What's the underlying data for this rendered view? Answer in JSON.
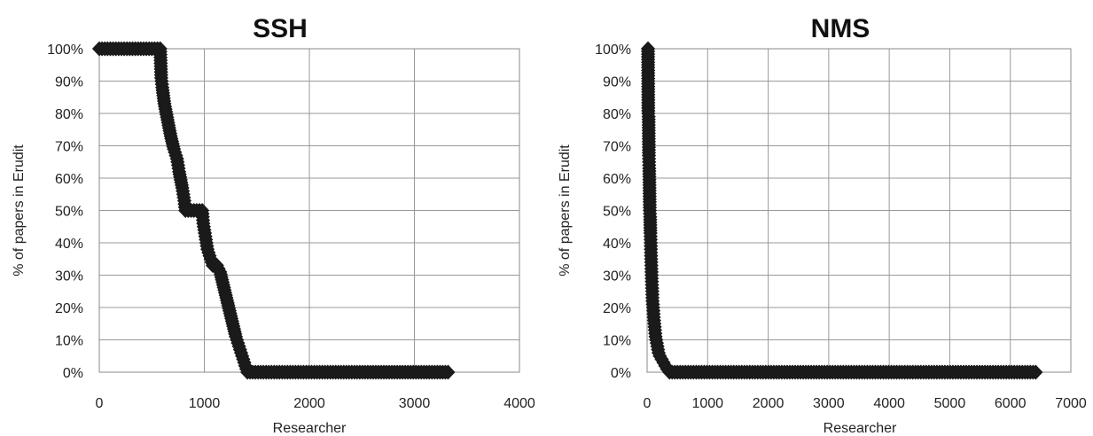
{
  "chart_data": [
    {
      "type": "scatter",
      "title": "SSH",
      "xlabel": "Researcher",
      "ylabel": "% of papers in Erudit",
      "xlim": [
        0,
        4000
      ],
      "ylim": [
        0,
        1
      ],
      "x_ticks": [
        "0",
        "1000",
        "2000",
        "3000",
        "4000"
      ],
      "y_ticks": [
        "0%",
        "10%",
        "20%",
        "30%",
        "40%",
        "50%",
        "60%",
        "70%",
        "80%",
        "90%",
        "100%"
      ],
      "grid": true,
      "legend": "none",
      "marker": "diamond",
      "color": "#1a1a1a",
      "series": [
        {
          "points": [
            [
              0,
              1.0
            ],
            [
              580,
              1.0
            ],
            [
              590,
              0.91
            ],
            [
              600,
              0.88
            ],
            [
              620,
              0.83
            ],
            [
              650,
              0.78
            ],
            [
              680,
              0.73
            ],
            [
              710,
              0.69
            ],
            [
              740,
              0.66
            ],
            [
              760,
              0.62
            ],
            [
              790,
              0.57
            ],
            [
              810,
              0.53
            ],
            [
              820,
              0.5
            ],
            [
              980,
              0.5
            ],
            [
              990,
              0.46
            ],
            [
              1010,
              0.42
            ],
            [
              1030,
              0.38
            ],
            [
              1060,
              0.35
            ],
            [
              1080,
              0.33
            ],
            [
              1120,
              0.33
            ],
            [
              1150,
              0.31
            ],
            [
              1180,
              0.27
            ],
            [
              1210,
              0.23
            ],
            [
              1240,
              0.19
            ],
            [
              1270,
              0.15
            ],
            [
              1300,
              0.11
            ],
            [
              1330,
              0.08
            ],
            [
              1360,
              0.05
            ],
            [
              1390,
              0.02
            ],
            [
              1410,
              0.0
            ],
            [
              3320,
              0.0
            ]
          ]
        }
      ]
    },
    {
      "type": "scatter",
      "title": "NMS",
      "xlabel": "Researcher",
      "ylabel": "% of papers in Erudit",
      "xlim": [
        0,
        7000
      ],
      "ylim": [
        0,
        1
      ],
      "x_ticks": [
        "0",
        "1000",
        "2000",
        "3000",
        "4000",
        "5000",
        "6000",
        "7000"
      ],
      "y_ticks": [
        "0%",
        "10%",
        "20%",
        "30%",
        "40%",
        "50%",
        "60%",
        "70%",
        "80%",
        "90%",
        "100%"
      ],
      "grid": true,
      "legend": "none",
      "marker": "diamond",
      "color": "#1a1a1a",
      "series": [
        {
          "points": [
            [
              15,
              1.0
            ],
            [
              20,
              0.8
            ],
            [
              25,
              0.79
            ],
            [
              30,
              0.67
            ],
            [
              35,
              0.63
            ],
            [
              40,
              0.57
            ],
            [
              45,
              0.5
            ],
            [
              50,
              0.48
            ],
            [
              55,
              0.43
            ],
            [
              60,
              0.4
            ],
            [
              65,
              0.36
            ],
            [
              70,
              0.33
            ],
            [
              75,
              0.3
            ],
            [
              80,
              0.27
            ],
            [
              85,
              0.25
            ],
            [
              90,
              0.22
            ],
            [
              100,
              0.2
            ],
            [
              110,
              0.17
            ],
            [
              120,
              0.15
            ],
            [
              130,
              0.13
            ],
            [
              140,
              0.11
            ],
            [
              150,
              0.1
            ],
            [
              170,
              0.08
            ],
            [
              190,
              0.06
            ],
            [
              210,
              0.05
            ],
            [
              240,
              0.04
            ],
            [
              270,
              0.03
            ],
            [
              300,
              0.02
            ],
            [
              330,
              0.01
            ],
            [
              370,
              0.0
            ],
            [
              6420,
              0.0
            ]
          ]
        }
      ]
    }
  ]
}
